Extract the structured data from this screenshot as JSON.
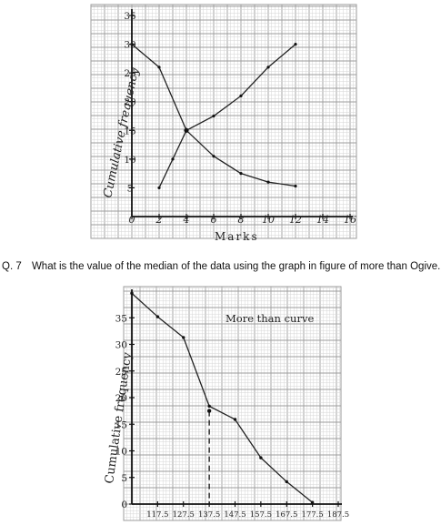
{
  "question": {
    "number": "Q. 7",
    "text": "What is the value of the median of the data using the graph in figure of more than Ogive."
  },
  "chart_data": [
    {
      "type": "line",
      "title": "",
      "xlabel": "Marks",
      "ylabel": "Cumulative frequency",
      "x_ticks": [
        "0",
        "2",
        "4",
        "6",
        "8",
        "10",
        "12",
        "14",
        "16"
      ],
      "y_ticks": [
        "5",
        "10",
        "15",
        "20",
        "25",
        "30",
        "35"
      ],
      "xlim": [
        0,
        16
      ],
      "ylim": [
        0,
        35
      ],
      "grid": true,
      "series": [
        {
          "x": [
            0,
            2,
            4,
            6,
            8,
            10,
            12
          ],
          "y": [
            30,
            26,
            15,
            10.5,
            7.5,
            6,
            5.3
          ]
        },
        {
          "x": [
            2,
            3,
            4,
            6,
            8,
            10,
            12
          ],
          "y": [
            5,
            10,
            15,
            17.5,
            21,
            26,
            30
          ]
        }
      ],
      "intersection": {
        "x": 4,
        "y": 15
      }
    },
    {
      "type": "line",
      "title": "",
      "xlabel": "",
      "ylabel": "Cumulative frequency",
      "annotation": "More than curve",
      "x_ticks": [
        "117.5",
        "127.5",
        "137.5",
        "147.5",
        "157.5",
        "167.5",
        "177.5",
        "187.5"
      ],
      "y_ticks": [
        "0",
        "5",
        "10",
        "15",
        "20",
        "25",
        "30",
        "35"
      ],
      "xlim": [
        107.5,
        187.5
      ],
      "ylim": [
        0,
        40
      ],
      "grid": true,
      "series": [
        {
          "x": [
            107.5,
            117.5,
            127.5,
            137.5,
            147.5,
            157.5,
            167.5,
            177.5
          ],
          "y": [
            39.6,
            35.2,
            31.3,
            18.4,
            15.9,
            8.7,
            4.2,
            0.3
          ]
        }
      ],
      "median": {
        "x": 137.5,
        "y": 17.5
      }
    }
  ]
}
